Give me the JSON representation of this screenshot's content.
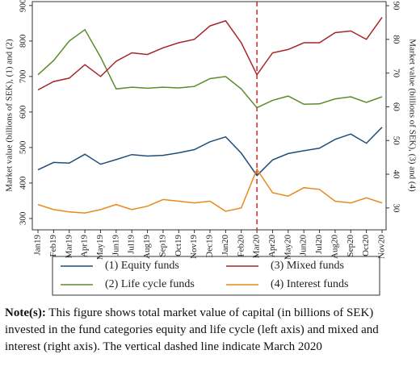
{
  "chart_data": {
    "type": "line",
    "y_label": "Market value (billions of SEK), (1) and (2)",
    "y2_label": "Market value (billions of SEK), (3) and (4)",
    "categories": [
      "Jan19",
      "Feb19",
      "Mar19",
      "Apr19",
      "May19",
      "Jun19",
      "Jul19",
      "Aug19",
      "Sep19",
      "Oct19",
      "Nov19",
      "Dec19",
      "Jan20",
      "Feb20",
      "Mar20",
      "Apr20",
      "May20",
      "Jun20",
      "Jul20",
      "Aug20",
      "Sep20",
      "Oct20",
      "Nov20"
    ],
    "series": [
      {
        "name": "(1) Equity funds",
        "color": "#1f4e79",
        "values": [
          437,
          458,
          456,
          481,
          453,
          466,
          480,
          476,
          478,
          485,
          494,
          516,
          530,
          484,
          421,
          465,
          483,
          491,
          498,
          523,
          538,
          512,
          557
        ]
      },
      {
        "name": "(2) Life cycle funds",
        "color": "#5b8c2a",
        "values": [
          705,
          745,
          800,
          832,
          755,
          665,
          670,
          667,
          670,
          668,
          672,
          694,
          700,
          665,
          612,
          633,
          645,
          622,
          623,
          637,
          643,
          627,
          643
        ]
      },
      {
        "name": "(3) Mixed funds",
        "color": "#a5262a",
        "axis": "y2",
        "values": [
          65,
          67.5,
          68.5,
          72.5,
          69,
          73.5,
          76,
          75.5,
          77.5,
          79,
          80,
          84,
          85.5,
          79,
          69.5,
          76,
          77,
          79,
          79,
          82,
          82.5,
          80,
          86.5
        ]
      },
      {
        "name": "(4) Interest funds",
        "color": "#e8891c",
        "axis": "y2",
        "values": [
          31,
          29.5,
          28.8,
          28.5,
          29.5,
          31,
          29.5,
          30.5,
          32.5,
          32,
          31.5,
          32,
          29,
          30,
          41.5,
          34.5,
          33.5,
          36,
          35.5,
          32,
          31.5,
          33,
          31.5
        ]
      }
    ],
    "ylim": [
      268,
      911
    ],
    "yticks": [
      300,
      400,
      500,
      600,
      700,
      800,
      900
    ],
    "y2lim": [
      23.5,
      91.2
    ],
    "y2ticks": [
      30,
      40,
      50,
      60,
      70,
      80,
      90
    ],
    "vline": "Mar20",
    "vline_color": "#d62728"
  },
  "note": {
    "label": "Note(s):",
    "text": "This figure shows total market value of capital (in billions of SEK) invested in the fund categories equity and life cycle (left axis) and mixed and interest (right axis). The vertical dashed line indicate March 2020"
  }
}
